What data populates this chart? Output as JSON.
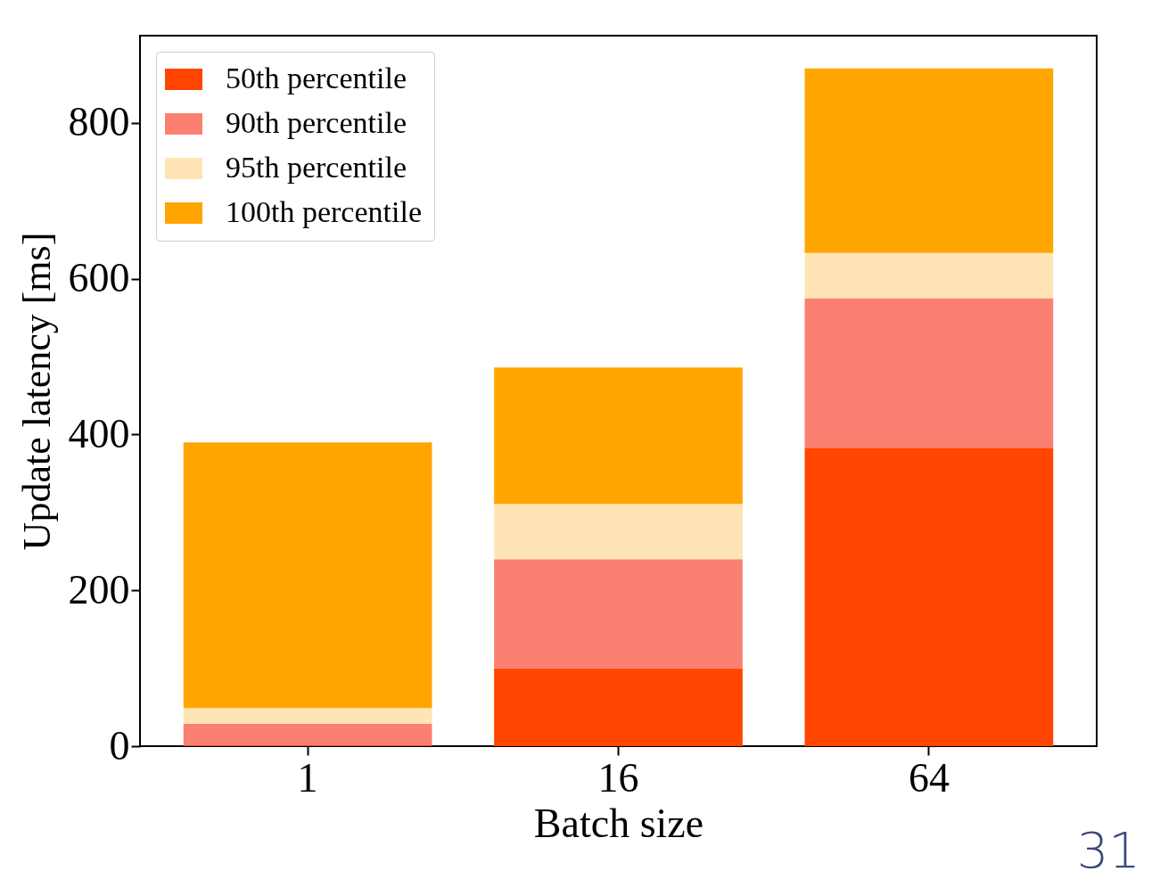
{
  "chart_data": {
    "type": "bar",
    "xlabel": "Batch size",
    "ylabel": "Update latency [ms]",
    "categories": [
      "1",
      "16",
      "64"
    ],
    "stacked": true,
    "series": [
      {
        "name": "50th percentile",
        "color": "#ff4500",
        "values": [
          1,
          100,
          383
        ]
      },
      {
        "name": "90th percentile",
        "color": "#fa8072",
        "values": [
          28,
          140,
          192
        ]
      },
      {
        "name": "95th percentile",
        "color": "#ffe4b5",
        "values": [
          20,
          71,
          58
        ]
      },
      {
        "name": "100th percentile",
        "color": "#ffa500",
        "values": [
          341,
          175,
          237
        ]
      }
    ],
    "ylim": [
      0,
      912
    ],
    "yticks": [
      0,
      200,
      400,
      600,
      800
    ],
    "grid": false,
    "legend": "top left",
    "annotations": [
      "31"
    ]
  }
}
